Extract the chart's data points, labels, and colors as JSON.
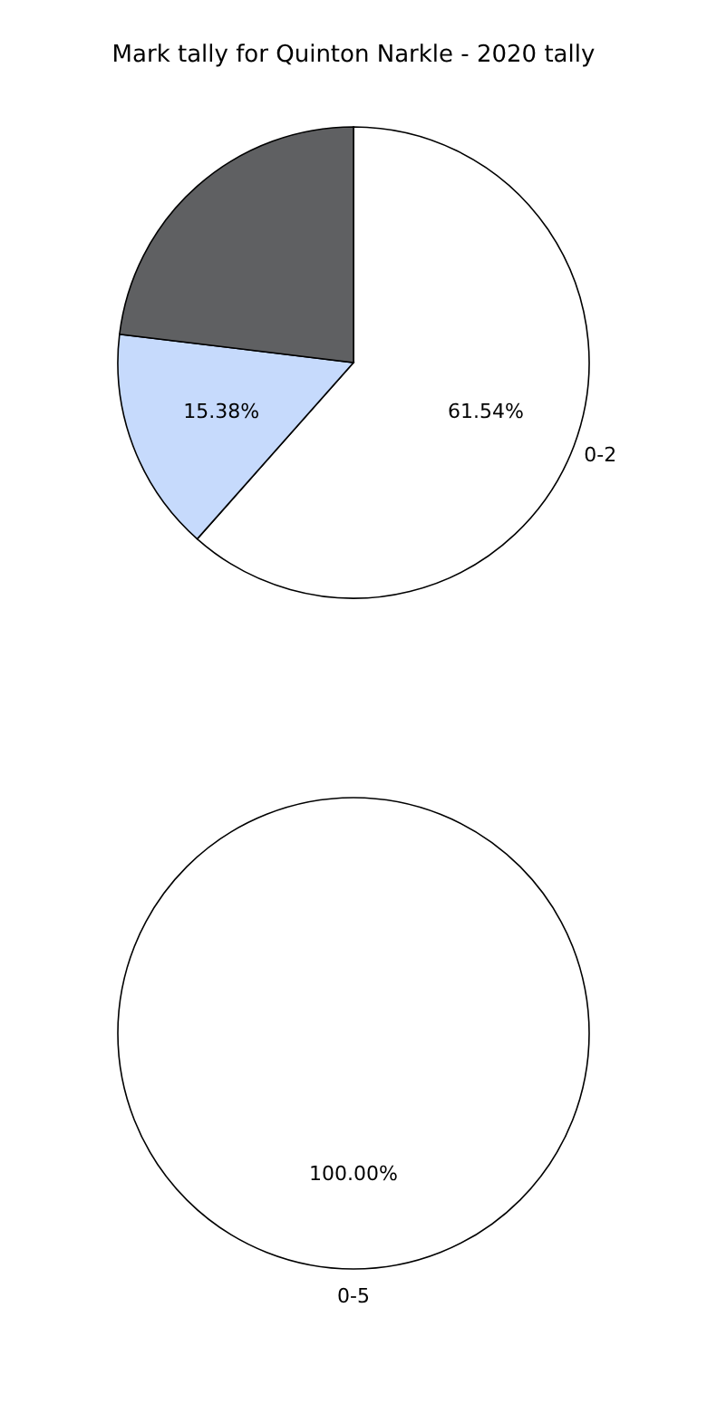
{
  "chart_data": [
    {
      "type": "pie",
      "title": "Mark tally for Quinton Narkle - 2020 tally",
      "categories": [
        "0-2",
        null,
        null
      ],
      "values": [
        61.54,
        15.38,
        23.08
      ],
      "colors": [
        "#ffffff",
        "#c6dafc",
        "#5f6062"
      ],
      "value_labels": [
        "61.54%",
        "15.38%",
        null
      ]
    },
    {
      "type": "pie",
      "categories": [
        "0-5"
      ],
      "values": [
        100
      ],
      "colors": [
        "#ffffff"
      ],
      "value_labels": [
        "100.00%"
      ]
    }
  ]
}
